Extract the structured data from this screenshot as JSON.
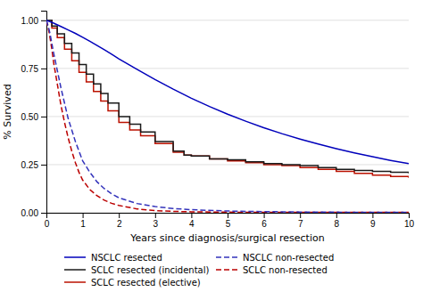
{
  "chart_data": {
    "type": "line",
    "xlabel": "Years since diagnosis/surgical resection",
    "ylabel": "% Survived",
    "xlim": [
      0,
      10
    ],
    "ylim": [
      0,
      1.05
    ],
    "xticks": [
      0,
      1,
      2,
      3,
      4,
      5,
      6,
      7,
      8,
      9,
      10
    ],
    "yticks": [
      {
        "value": 0.0,
        "label": "0.00"
      },
      0.25,
      {
        "value": 0.5,
        "label": "0.50"
      },
      0.75,
      {
        "value": 1.0,
        "label": "1.00"
      }
    ],
    "grid": "y",
    "legend": "bottom",
    "series": [
      {
        "name": "NSCLC resected",
        "color": "#0000bb",
        "type": "line",
        "line_style": "solid",
        "x": [
          0,
          0.2,
          0.4,
          0.6,
          0.8,
          1.0,
          1.2,
          1.4,
          1.6,
          1.8,
          2.0,
          2.5,
          3.0,
          3.5,
          4.0,
          4.5,
          5.0,
          5.5,
          6.0,
          6.5,
          7.0,
          7.5,
          8.0,
          8.5,
          9.0,
          9.5,
          10.0
        ],
        "values": [
          1.0,
          0.985,
          0.968,
          0.95,
          0.932,
          0.912,
          0.891,
          0.869,
          0.847,
          0.824,
          0.8,
          0.745,
          0.692,
          0.642,
          0.595,
          0.552,
          0.512,
          0.476,
          0.442,
          0.411,
          0.383,
          0.357,
          0.333,
          0.311,
          0.291,
          0.272,
          0.255
        ]
      },
      {
        "name": "SCLC resected (incidental)",
        "color": "#1a1a1a",
        "type": "step",
        "line_style": "solid",
        "x": [
          0,
          0.15,
          0.3,
          0.5,
          0.7,
          0.9,
          1.1,
          1.3,
          1.5,
          1.7,
          2.0,
          2.3,
          2.6,
          3.0,
          3.5,
          3.8,
          4.0,
          4.5,
          5.0,
          5.5,
          6.0,
          6.5,
          7.0,
          7.5,
          8.0,
          8.5,
          9.0,
          9.5,
          10.0
        ],
        "values": [
          1.0,
          0.97,
          0.93,
          0.88,
          0.83,
          0.77,
          0.72,
          0.67,
          0.62,
          0.57,
          0.5,
          0.46,
          0.42,
          0.37,
          0.32,
          0.3,
          0.295,
          0.28,
          0.275,
          0.265,
          0.255,
          0.25,
          0.245,
          0.235,
          0.225,
          0.22,
          0.215,
          0.21,
          0.205
        ]
      },
      {
        "name": "SCLC resected (elective)",
        "color": "#bb1100",
        "type": "step",
        "line_style": "solid",
        "x": [
          0,
          0.15,
          0.3,
          0.5,
          0.7,
          0.9,
          1.1,
          1.3,
          1.5,
          1.7,
          2.0,
          2.3,
          2.6,
          3.0,
          3.5,
          3.8,
          4.0,
          4.5,
          5.0,
          5.5,
          6.0,
          6.5,
          7.0,
          7.5,
          8.0,
          8.5,
          9.0,
          9.5,
          10.0
        ],
        "values": [
          1.0,
          0.96,
          0.91,
          0.85,
          0.79,
          0.73,
          0.68,
          0.63,
          0.58,
          0.53,
          0.47,
          0.43,
          0.4,
          0.36,
          0.315,
          0.3,
          0.295,
          0.28,
          0.27,
          0.26,
          0.25,
          0.245,
          0.235,
          0.225,
          0.215,
          0.205,
          0.195,
          0.188,
          0.182
        ]
      },
      {
        "name": "NSCLC non-resected",
        "color": "#3333bb",
        "type": "line",
        "line_style": "dashed",
        "x": [
          0,
          0.05,
          0.1,
          0.15,
          0.2,
          0.3,
          0.4,
          0.5,
          0.6,
          0.7,
          0.8,
          0.9,
          1.0,
          1.2,
          1.4,
          1.6,
          1.8,
          2.0,
          2.5,
          3.0,
          3.5,
          4.0,
          5.0,
          6.0,
          7.0,
          8.0,
          9.0,
          10.0
        ],
        "values": [
          1.0,
          0.97,
          0.93,
          0.88,
          0.83,
          0.74,
          0.65,
          0.57,
          0.49,
          0.43,
          0.37,
          0.32,
          0.27,
          0.21,
          0.16,
          0.125,
          0.098,
          0.078,
          0.048,
          0.032,
          0.022,
          0.016,
          0.009,
          0.006,
          0.004,
          0.003,
          0.002,
          0.002
        ]
      },
      {
        "name": "SCLC non-resected",
        "color": "#bb0000",
        "type": "line",
        "line_style": "dashed",
        "x": [
          0,
          0.05,
          0.1,
          0.15,
          0.2,
          0.3,
          0.4,
          0.5,
          0.6,
          0.7,
          0.8,
          0.9,
          1.0,
          1.2,
          1.4,
          1.6,
          1.8,
          2.0,
          2.5,
          3.0,
          3.5,
          4.0,
          5.0,
          6.0,
          7.0,
          8.0,
          9.0,
          10.0
        ],
        "values": [
          1.0,
          0.96,
          0.91,
          0.85,
          0.78,
          0.67,
          0.56,
          0.47,
          0.39,
          0.32,
          0.26,
          0.21,
          0.17,
          0.12,
          0.088,
          0.065,
          0.049,
          0.038,
          0.02,
          0.011,
          0.007,
          0.005,
          0.003,
          0.002,
          0.002,
          0.002,
          0.002,
          0.002
        ]
      }
    ]
  }
}
